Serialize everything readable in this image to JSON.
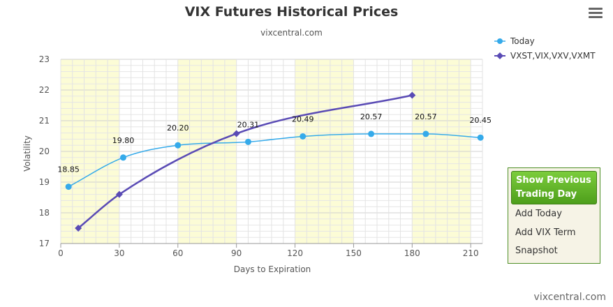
{
  "chart_data": {
    "type": "line",
    "title": "VIX Futures Historical Prices",
    "subtitle": "vixcentral.com",
    "xlabel": "Days to Expiration",
    "ylabel": "Volatility",
    "xlim": [
      0,
      216
    ],
    "ylim": [
      17,
      23
    ],
    "x_ticks": [
      0,
      30,
      60,
      90,
      120,
      150,
      180,
      210
    ],
    "y_ticks": [
      17,
      18,
      19,
      20,
      21,
      22,
      23
    ],
    "grid": true,
    "legend_position": "top-right",
    "shaded_bands": [
      [
        0,
        30
      ],
      [
        60,
        90
      ],
      [
        120,
        150
      ],
      [
        180,
        210
      ]
    ],
    "series": [
      {
        "name": "Today",
        "color": "#35aaea",
        "marker": "circle",
        "points": [
          {
            "x": 4,
            "y": 18.85,
            "label": "18.85"
          },
          {
            "x": 32,
            "y": 19.8,
            "label": "19.80"
          },
          {
            "x": 60,
            "y": 20.2,
            "label": "20.20"
          },
          {
            "x": 96,
            "y": 20.31,
            "label": "20.31"
          },
          {
            "x": 124,
            "y": 20.49,
            "label": "20.49"
          },
          {
            "x": 159,
            "y": 20.57,
            "label": "20.57"
          },
          {
            "x": 187,
            "y": 20.57,
            "label": "20.57"
          },
          {
            "x": 215,
            "y": 20.45,
            "label": "20.45"
          }
        ]
      },
      {
        "name": "VXST,VIX,VXV,VXMT",
        "color": "#5a4bb5",
        "marker": "diamond",
        "points": [
          {
            "x": 9,
            "y": 17.5
          },
          {
            "x": 30,
            "y": 18.6
          },
          {
            "x": 90,
            "y": 20.58
          },
          {
            "x": 180,
            "y": 21.83
          }
        ]
      }
    ]
  },
  "controls": {
    "show_previous_label": "Show Previous Trading Day",
    "add_today_label": "Add Today",
    "add_vix_term_label": "Add VIX Term",
    "snapshot_label": "Snapshot"
  },
  "credit": "vixcentral.com",
  "menu_icon": "hamburger-menu-icon"
}
